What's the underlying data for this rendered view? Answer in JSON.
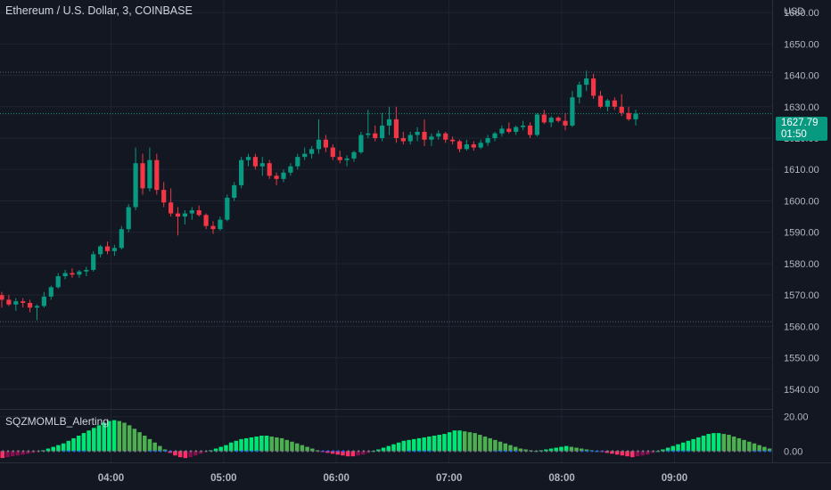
{
  "header": {
    "title": "Ethereum / U.S. Dollar, 3, COINBASE"
  },
  "currency": "USD",
  "indicator": {
    "name": "SQZMOMLB_Alerting"
  },
  "last_price": {
    "value": "1627.79",
    "countdown": "01:50"
  },
  "colors": {
    "up": "#089981",
    "down": "#f23645",
    "background": "#131722",
    "grid": "#1f2433",
    "mom_pos_strong": "#00e676",
    "mom_pos_weak": "#4caf50",
    "mom_neg_strong": "#ff2f6a",
    "mom_neg_weak": "#880e4f",
    "sqz_on": "#787b86",
    "sqz_off": "#2962ff"
  },
  "chart_data": [
    {
      "type": "candlestick",
      "title": "Ethereum / U.S. Dollar, 3, COINBASE",
      "price_axis": {
        "label": "USD",
        "ticks": [
          "1660.00",
          "1650.00",
          "1640.00",
          "1630.00",
          "1620.00",
          "1610.00",
          "1600.00",
          "1590.00",
          "1580.00",
          "1570.00",
          "1560.00",
          "1550.00",
          "1540.00"
        ]
      },
      "time_axis": {
        "ticks": [
          "04:00",
          "05:00",
          "06:00",
          "07:00",
          "08:00",
          "09:00"
        ]
      },
      "ylim": [
        1534,
        1664
      ],
      "reference_lines": [
        1641,
        1561.5,
        1627.79
      ],
      "candles": [
        [
          1570.0,
          1571.0,
          1566.0,
          1568.5
        ],
        [
          1568.5,
          1570.0,
          1566.5,
          1567.0
        ],
        [
          1567.0,
          1569.0,
          1565.0,
          1568.0
        ],
        [
          1568.0,
          1569.0,
          1566.0,
          1567.5
        ],
        [
          1567.5,
          1568.5,
          1564.5,
          1566.0
        ],
        [
          1566.0,
          1567.0,
          1562.0,
          1566.5
        ],
        [
          1566.5,
          1571.0,
          1566.0,
          1569.5
        ],
        [
          1569.5,
          1573.0,
          1568.5,
          1572.5
        ],
        [
          1572.5,
          1577.0,
          1572.0,
          1576.0
        ],
        [
          1576.0,
          1578.0,
          1575.0,
          1577.0
        ],
        [
          1577.0,
          1578.5,
          1575.5,
          1576.5
        ],
        [
          1576.5,
          1578.0,
          1575.5,
          1577.5
        ],
        [
          1577.5,
          1579.0,
          1576.0,
          1578.0
        ],
        [
          1578.0,
          1584.0,
          1577.5,
          1583.0
        ],
        [
          1583.0,
          1586.0,
          1582.0,
          1585.5
        ],
        [
          1585.5,
          1587.0,
          1583.0,
          1584.0
        ],
        [
          1584.0,
          1586.0,
          1582.5,
          1585.0
        ],
        [
          1585.0,
          1592.0,
          1584.5,
          1591.0
        ],
        [
          1591.0,
          1599.0,
          1590.0,
          1598.0
        ],
        [
          1598.0,
          1617.0,
          1597.0,
          1612.0
        ],
        [
          1612.0,
          1615.0,
          1602.0,
          1604.0
        ],
        [
          1604.0,
          1617.0,
          1603.0,
          1613.0
        ],
        [
          1613.0,
          1615.0,
          1602.0,
          1603.5
        ],
        [
          1603.5,
          1606.0,
          1598.0,
          1599.5
        ],
        [
          1599.5,
          1604.0,
          1595.0,
          1596.0
        ],
        [
          1596.0,
          1598.0,
          1589.0,
          1595.0
        ],
        [
          1595.0,
          1597.0,
          1592.5,
          1596.0
        ],
        [
          1596.0,
          1598.0,
          1594.0,
          1597.0
        ],
        [
          1597.0,
          1598.5,
          1595.0,
          1595.5
        ],
        [
          1595.5,
          1596.0,
          1591.0,
          1592.0
        ],
        [
          1592.0,
          1593.5,
          1589.5,
          1591.0
        ],
        [
          1591.0,
          1595.0,
          1590.5,
          1594.0
        ],
        [
          1594.0,
          1602.0,
          1593.5,
          1601.0
        ],
        [
          1601.0,
          1606.0,
          1600.0,
          1605.0
        ],
        [
          1605.0,
          1614.0,
          1604.0,
          1613.0
        ],
        [
          1613.0,
          1615.0,
          1611.0,
          1614.0
        ],
        [
          1614.0,
          1615.0,
          1610.0,
          1611.0
        ],
        [
          1611.0,
          1614.0,
          1608.0,
          1612.0
        ],
        [
          1612.0,
          1613.0,
          1607.0,
          1608.0
        ],
        [
          1608.0,
          1609.0,
          1605.0,
          1607.0
        ],
        [
          1607.0,
          1610.0,
          1606.0,
          1609.0
        ],
        [
          1609.0,
          1612.0,
          1608.0,
          1611.0
        ],
        [
          1611.0,
          1615.0,
          1610.0,
          1614.0
        ],
        [
          1614.0,
          1617.0,
          1613.0,
          1615.0
        ],
        [
          1615.0,
          1617.5,
          1613.5,
          1616.5
        ],
        [
          1616.5,
          1626.0,
          1615.0,
          1619.5
        ],
        [
          1619.5,
          1621.0,
          1615.5,
          1617.0
        ],
        [
          1617.0,
          1618.0,
          1613.0,
          1614.0
        ],
        [
          1614.0,
          1616.0,
          1612.0,
          1613.0
        ],
        [
          1613.0,
          1614.5,
          1611.0,
          1613.5
        ],
        [
          1613.5,
          1616.0,
          1612.5,
          1615.5
        ],
        [
          1615.5,
          1622.0,
          1615.0,
          1621.0
        ],
        [
          1621.0,
          1629.0,
          1620.0,
          1621.5
        ],
        [
          1621.5,
          1624.0,
          1619.0,
          1620.0
        ],
        [
          1620.0,
          1628.0,
          1619.0,
          1624.0
        ],
        [
          1624.0,
          1630.0,
          1621.0,
          1626.0
        ],
        [
          1626.0,
          1630.0,
          1618.5,
          1620.0
        ],
        [
          1620.0,
          1622.0,
          1618.0,
          1619.0
        ],
        [
          1619.0,
          1622.0,
          1618.0,
          1621.0
        ],
        [
          1621.0,
          1623.5,
          1619.0,
          1622.0
        ],
        [
          1622.0,
          1626.0,
          1617.5,
          1619.5
        ],
        [
          1619.5,
          1621.5,
          1617.5,
          1620.5
        ],
        [
          1620.5,
          1622.5,
          1619.5,
          1621.5
        ],
        [
          1621.5,
          1622.0,
          1618.5,
          1619.5
        ],
        [
          1619.5,
          1620.5,
          1618.0,
          1619.0
        ],
        [
          1619.0,
          1619.5,
          1615.5,
          1616.5
        ],
        [
          1616.5,
          1619.5,
          1616.0,
          1618.0
        ],
        [
          1618.0,
          1619.0,
          1616.0,
          1617.0
        ],
        [
          1617.0,
          1619.5,
          1616.5,
          1618.5
        ],
        [
          1618.5,
          1621.0,
          1617.5,
          1620.0
        ],
        [
          1620.0,
          1622.0,
          1619.0,
          1621.5
        ],
        [
          1621.5,
          1624.0,
          1620.5,
          1623.0
        ],
        [
          1623.0,
          1625.0,
          1621.5,
          1622.0
        ],
        [
          1622.0,
          1624.0,
          1621.0,
          1623.5
        ],
        [
          1623.5,
          1625.5,
          1622.5,
          1624.0
        ],
        [
          1624.0,
          1625.0,
          1620.0,
          1621.0
        ],
        [
          1621.0,
          1628.0,
          1620.5,
          1627.5
        ],
        [
          1627.5,
          1629.0,
          1624.5,
          1625.0
        ],
        [
          1625.0,
          1627.0,
          1623.5,
          1626.5
        ],
        [
          1626.5,
          1627.0,
          1625.0,
          1625.5
        ],
        [
          1625.5,
          1628.0,
          1622.5,
          1624.0
        ],
        [
          1624.0,
          1635.0,
          1623.5,
          1633.0
        ],
        [
          1633.0,
          1638.0,
          1631.0,
          1637.0
        ],
        [
          1637.0,
          1641.5,
          1635.0,
          1639.0
        ],
        [
          1639.0,
          1640.5,
          1632.5,
          1633.5
        ],
        [
          1633.5,
          1635.0,
          1629.5,
          1630.0
        ],
        [
          1630.0,
          1632.5,
          1628.5,
          1632.0
        ],
        [
          1632.0,
          1633.0,
          1629.0,
          1630.0
        ],
        [
          1630.0,
          1634.0,
          1627.0,
          1628.0
        ],
        [
          1628.0,
          1630.0,
          1625.5,
          1626.0
        ],
        [
          1626.0,
          1629.0,
          1624.0,
          1627.79
        ]
      ]
    },
    {
      "type": "bar",
      "title": "SQZMOMLB_Alerting",
      "ticks": [
        "20.00",
        "0.00"
      ],
      "ylim": [
        -6,
        24
      ],
      "values": [
        -4,
        -3.5,
        -3,
        -2.5,
        -2,
        -1.5,
        -1,
        -0.5,
        0.5,
        1.5,
        2.5,
        3.5,
        4.5,
        6,
        7.5,
        9,
        10.5,
        12,
        13.5,
        15,
        16.5,
        17.5,
        18,
        17.5,
        16.5,
        15,
        13,
        11,
        9,
        7,
        5,
        3,
        1,
        -1,
        -2.5,
        -3.5,
        -4,
        -3.5,
        -2.5,
        -1.5,
        -0.5,
        0.5,
        1.5,
        2.5,
        3.5,
        5,
        6,
        7,
        7.5,
        8,
        8.5,
        9,
        9,
        8.5,
        8,
        7.5,
        6.5,
        5.5,
        4.5,
        3.5,
        2.5,
        1.5,
        0.5,
        -0.5,
        -1,
        -1.5,
        -2,
        -2.5,
        -3,
        -3,
        -2.5,
        -2,
        -1,
        0,
        1,
        2,
        3,
        4,
        5,
        6,
        6.5,
        7,
        7.5,
        8,
        8.5,
        9,
        9.5,
        10,
        11,
        12,
        12,
        11.5,
        11,
        10.5,
        9.5,
        8.5,
        7.5,
        6.5,
        5.5,
        4.5,
        3.5,
        2.5,
        1.5,
        1,
        0.5,
        0,
        0.5,
        1,
        1.5,
        2,
        2.5,
        3,
        2.5,
        2,
        1.5,
        1,
        0.5,
        0,
        -0.5,
        -1,
        -1.5,
        -2,
        -2.5,
        -3,
        -3.5,
        -3,
        -2.5,
        -2,
        -1,
        0,
        1,
        2,
        3,
        4,
        5,
        6,
        7,
        8,
        9,
        10,
        10.5,
        10.5,
        10,
        9.5,
        8.5,
        7.5,
        6.5,
        5.5,
        4.5,
        3.5,
        2.5,
        1.5
      ]
    }
  ]
}
